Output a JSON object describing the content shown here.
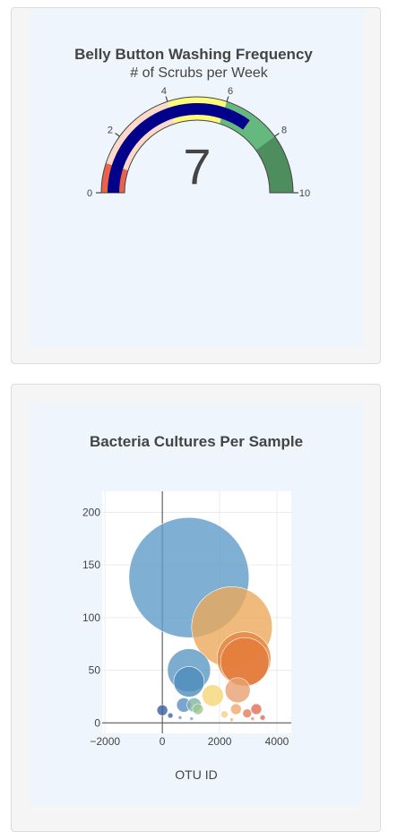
{
  "chart_data": [
    {
      "type": "gauge",
      "title": "Belly Button Washing Frequency",
      "subtitle": "# of Scrubs per Week",
      "value": 7,
      "range": [
        0,
        10
      ],
      "ticks": [
        "0",
        "2",
        "4",
        "6",
        "8",
        "10"
      ],
      "tick_values": [
        0,
        2,
        4,
        6,
        8,
        10
      ],
      "steps": [
        {
          "range": [
            0,
            1
          ],
          "color": "#e8634a"
        },
        {
          "range": [
            1,
            4
          ],
          "color": "#fcd9c8"
        },
        {
          "range": [
            4,
            6
          ],
          "color": "#fdfb78"
        },
        {
          "range": [
            6,
            8
          ],
          "color": "#66b97e"
        },
        {
          "range": [
            8,
            10
          ],
          "color": "#4e8e5e"
        }
      ],
      "bar_color": "#00008b"
    },
    {
      "type": "bubble",
      "title": "Bacteria Cultures Per Sample",
      "xlabel": "OTU ID",
      "ylabel": "",
      "xlim": [
        -2100,
        4500
      ],
      "ylim": [
        -10,
        220
      ],
      "xticks": [
        -2000,
        0,
        2000,
        4000
      ],
      "xtick_labels": [
        "−2000",
        "0",
        "2000",
        "4000"
      ],
      "yticks": [
        0,
        50,
        100,
        150,
        200
      ],
      "ytick_labels": [
        "0",
        "50",
        "100",
        "150",
        "200"
      ],
      "points": [
        {
          "x": 930,
          "y": 138,
          "size": 67,
          "color": "#5f9cc8"
        },
        {
          "x": 2430,
          "y": 91,
          "size": 45,
          "color": "#eca95b"
        },
        {
          "x": 2850,
          "y": 61,
          "size": 30,
          "color": "#e6843f"
        },
        {
          "x": 2880,
          "y": 58,
          "size": 27,
          "color": "#e27a3a"
        },
        {
          "x": 930,
          "y": 50,
          "size": 24,
          "color": "#5b97c2"
        },
        {
          "x": 930,
          "y": 39,
          "size": 17,
          "color": "#4f8dbd"
        },
        {
          "x": 1760,
          "y": 26,
          "size": 12,
          "color": "#f4d777"
        },
        {
          "x": 2630,
          "y": 31,
          "size": 14,
          "color": "#e8a071"
        },
        {
          "x": 750,
          "y": 17,
          "size": 8,
          "color": "#5a8fc0"
        },
        {
          "x": 1110,
          "y": 17,
          "size": 8,
          "color": "#7fb3a6"
        },
        {
          "x": 1240,
          "y": 13,
          "size": 6,
          "color": "#9bc78d"
        },
        {
          "x": 0,
          "y": 12,
          "size": 6,
          "color": "#3a5ea0"
        },
        {
          "x": 2570,
          "y": 13,
          "size": 6,
          "color": "#f0a768"
        },
        {
          "x": 3280,
          "y": 13,
          "size": 6,
          "color": "#df6f55"
        },
        {
          "x": 2960,
          "y": 9,
          "size": 5,
          "color": "#e37c5c"
        },
        {
          "x": 2170,
          "y": 8,
          "size": 4,
          "color": "#f8cd8a"
        },
        {
          "x": 280,
          "y": 7,
          "size": 3,
          "color": "#3f64a7"
        },
        {
          "x": 620,
          "y": 5,
          "size": 2,
          "color": "#6b93c0"
        },
        {
          "x": 1020,
          "y": 4,
          "size": 2,
          "color": "#7ba6cc"
        },
        {
          "x": 3500,
          "y": 5,
          "size": 3,
          "color": "#e06b54"
        },
        {
          "x": 3150,
          "y": 4,
          "size": 2,
          "color": "#ec8f6a"
        },
        {
          "x": 2420,
          "y": 3,
          "size": 2,
          "color": "#f2b47c"
        }
      ]
    }
  ]
}
